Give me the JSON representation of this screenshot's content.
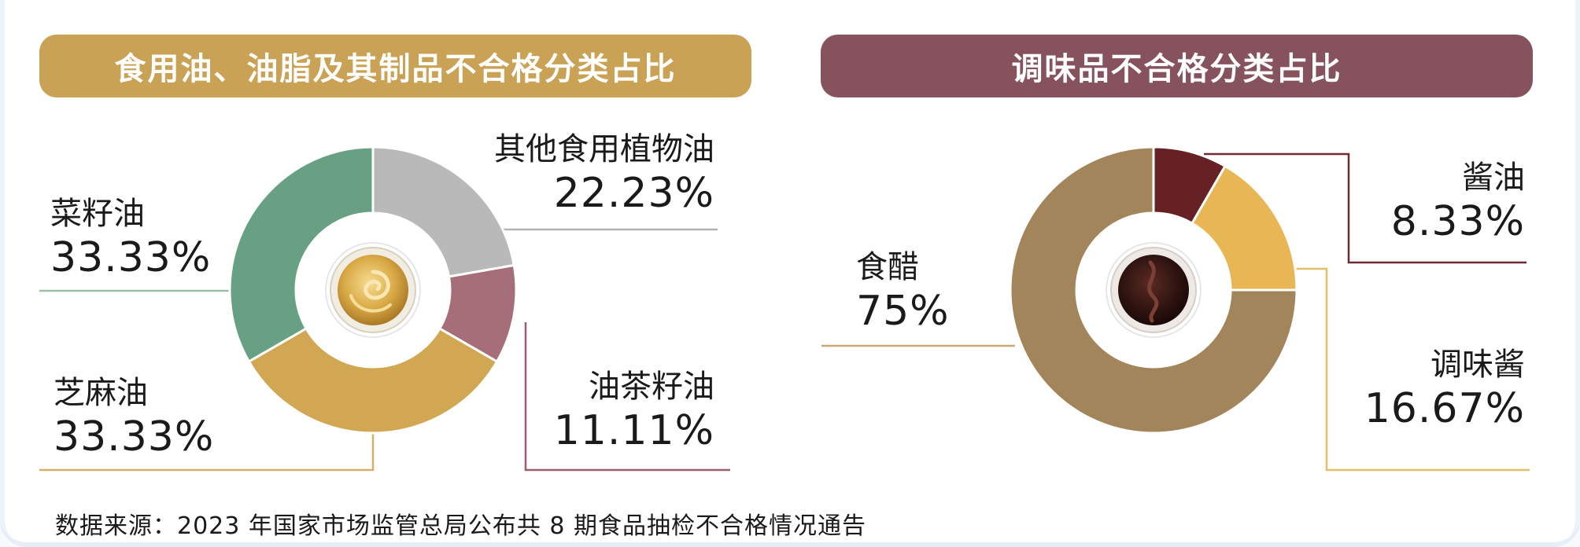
{
  "chart_data": [
    {
      "type": "pie",
      "title": "食用油、油脂及其制品不合格分类占比",
      "categories": [
        "其他食用植物油",
        "油茶籽油",
        "芝麻油",
        "菜籽油"
      ],
      "values": [
        22.23,
        11.11,
        33.33,
        33.33
      ],
      "value_labels": [
        "22.23%",
        "11.11%",
        "33.33%",
        "33.33%"
      ],
      "colors": [
        "#b9b9b9",
        "#a56e78",
        "#d1a753",
        "#67a083"
      ],
      "donut": true,
      "leader_colors": [
        "#b4b4b4",
        "#9a5d69",
        "#d2b06a",
        "#9cbeaa"
      ]
    },
    {
      "type": "pie",
      "title": "调味品不合格分类占比",
      "categories": [
        "酱油",
        "调味酱",
        "食醋"
      ],
      "values": [
        8.33,
        16.67,
        75
      ],
      "value_labels": [
        "8.33%",
        "16.67%",
        "75%"
      ],
      "colors": [
        "#652124",
        "#e8b654",
        "#a2855a"
      ],
      "donut": true,
      "leader_colors": [
        "#6e2a33",
        "#e2c06a",
        "#c6a877"
      ]
    }
  ],
  "footer": {
    "source": "数据来源：2023 年国家市场监管总局公布共 8 期食品抽检不合格情况通告"
  }
}
